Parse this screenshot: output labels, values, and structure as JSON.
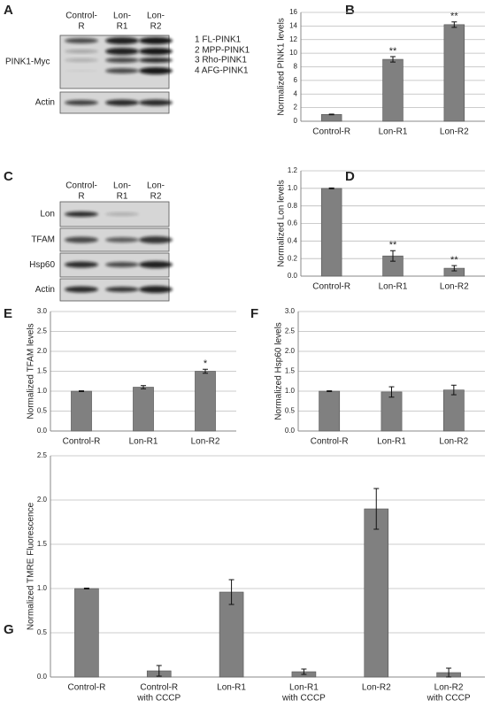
{
  "blots": {
    "A": {
      "letter": "A",
      "columns": [
        [
          "Control-",
          "R"
        ],
        [
          "Lon-",
          "R1"
        ],
        [
          "Lon-",
          "R2"
        ]
      ],
      "rows": [
        "PINK1-Myc",
        "Actin"
      ],
      "bands": [
        "1 FL-PINK1",
        "2 MPP-PINK1",
        "3 Rho-PINK1",
        "4 AFG-PINK1"
      ]
    },
    "C": {
      "letter": "C",
      "columns": [
        [
          "Control-",
          "R"
        ],
        [
          "Lon-",
          "R1"
        ],
        [
          "Lon-",
          "R2"
        ]
      ],
      "rows": [
        "Lon",
        "TFAM",
        "Hsp60",
        "Actin"
      ]
    }
  },
  "chart_data": [
    {
      "type": "bar",
      "letter": "B",
      "ylabel": "Normalized PINK1 levels",
      "categories": [
        [
          "Control-R"
        ],
        [
          "Lon-R1"
        ],
        [
          "Lon-R2"
        ]
      ],
      "values": [
        1.0,
        9.1,
        14.2
      ],
      "errors": [
        0.05,
        0.4,
        0.4
      ],
      "value_annotations": [
        null,
        "**",
        "**"
      ],
      "ylim": [
        0,
        16
      ],
      "yticks": [
        0,
        2,
        4,
        6,
        8,
        10,
        12,
        14,
        16
      ],
      "grid": true,
      "color": "#808080"
    },
    {
      "type": "bar",
      "letter": "D",
      "ylabel": "Normalized Lon levels",
      "categories": [
        [
          "Control-R"
        ],
        [
          "Lon-R1"
        ],
        [
          "Lon-R2"
        ]
      ],
      "values": [
        1.0,
        0.23,
        0.09
      ],
      "errors": [
        0.005,
        0.06,
        0.03
      ],
      "value_annotations": [
        null,
        "**",
        "**"
      ],
      "ylim": [
        0,
        1.2
      ],
      "yticks": [
        {
          "value": 0,
          "label": "0.0"
        },
        0.2,
        0.4,
        0.6,
        0.8,
        {
          "value": 1,
          "label": "1.0"
        },
        1.2
      ],
      "grid": true,
      "color": "#808080"
    },
    {
      "type": "bar",
      "letter": "E",
      "ylabel": "Normalized TFAM levels",
      "categories": [
        [
          "Control-R"
        ],
        [
          "Lon-R1"
        ],
        [
          "Lon-R2"
        ]
      ],
      "values": [
        1.0,
        1.1,
        1.5
      ],
      "errors": [
        0.01,
        0.04,
        0.05
      ],
      "value_annotations": [
        null,
        null,
        "*"
      ],
      "ylim": [
        0,
        3
      ],
      "yticks": [
        {
          "value": 0,
          "label": "0.0"
        },
        0.5,
        {
          "value": 1,
          "label": "1.0"
        },
        1.5,
        {
          "value": 2,
          "label": "2.0"
        },
        2.5,
        {
          "value": 3,
          "label": "3.0"
        }
      ],
      "grid": true,
      "color": "#808080"
    },
    {
      "type": "bar",
      "letter": "F",
      "ylabel": "Normalized Hsp60 levels",
      "categories": [
        [
          "Control-R"
        ],
        [
          "Lon-R1"
        ],
        [
          "Lon-R2"
        ]
      ],
      "values": [
        1.0,
        0.98,
        1.03
      ],
      "errors": [
        0.01,
        0.13,
        0.12
      ],
      "ylim": [
        0,
        3
      ],
      "yticks": [
        {
          "value": 0,
          "label": "0.0"
        },
        0.5,
        {
          "value": 1,
          "label": "1.0"
        },
        1.5,
        {
          "value": 2,
          "label": "2.0"
        },
        2.5,
        {
          "value": 3,
          "label": "3.0"
        }
      ],
      "grid": true,
      "color": "#808080"
    },
    {
      "type": "bar",
      "letter": "G",
      "ylabel": "Normalized TMRE Fluorescence",
      "categories": [
        [
          "Control-R"
        ],
        [
          "Control-R",
          "with CCCP"
        ],
        [
          "Lon-R1"
        ],
        [
          "Lon-R1",
          "with CCCP"
        ],
        [
          "Lon-R2"
        ],
        [
          "Lon-R2",
          "with CCCP"
        ]
      ],
      "values": [
        1.0,
        0.07,
        0.96,
        0.06,
        1.9,
        0.05
      ],
      "errors": [
        0.005,
        0.06,
        0.14,
        0.03,
        0.23,
        0.05
      ],
      "ylim": [
        0,
        2.5
      ],
      "yticks": [
        {
          "value": 0,
          "label": "0.0"
        },
        0.5,
        {
          "value": 1,
          "label": "1.0"
        },
        1.5,
        {
          "value": 2,
          "label": "2.0"
        },
        2.5
      ],
      "grid": true,
      "color": "#808080"
    }
  ]
}
